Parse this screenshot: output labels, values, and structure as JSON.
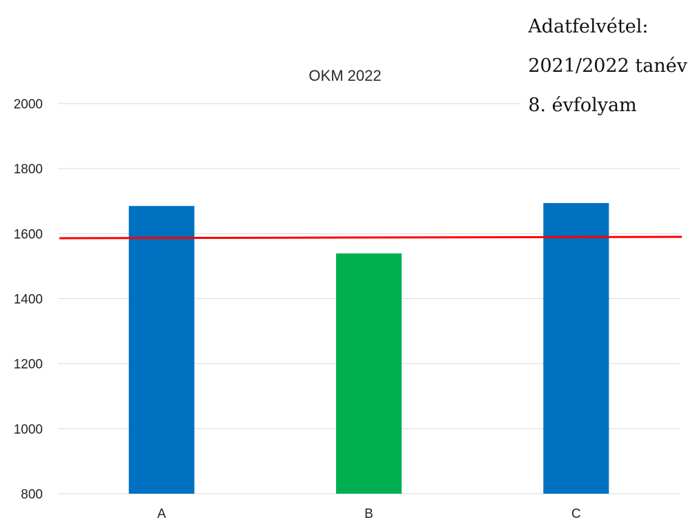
{
  "chart_data": {
    "type": "bar",
    "title": "OKM 2022",
    "categories": [
      "A",
      "B",
      "C"
    ],
    "values": [
      1685,
      1539,
      1694
    ],
    "bar_colors": [
      "#0070c0",
      "#00b050",
      "#0070c0"
    ],
    "ylim": [
      800,
      2000
    ],
    "yticks": [
      800,
      1000,
      1200,
      1400,
      1600,
      1800,
      2000
    ],
    "grid": true,
    "reference_line": {
      "value": 1588,
      "color": "#ff0000"
    }
  },
  "annotation": {
    "line1": "Adatfelvétel:",
    "line2": "2021/2022 tanév",
    "line3": "8. évfolyam"
  }
}
